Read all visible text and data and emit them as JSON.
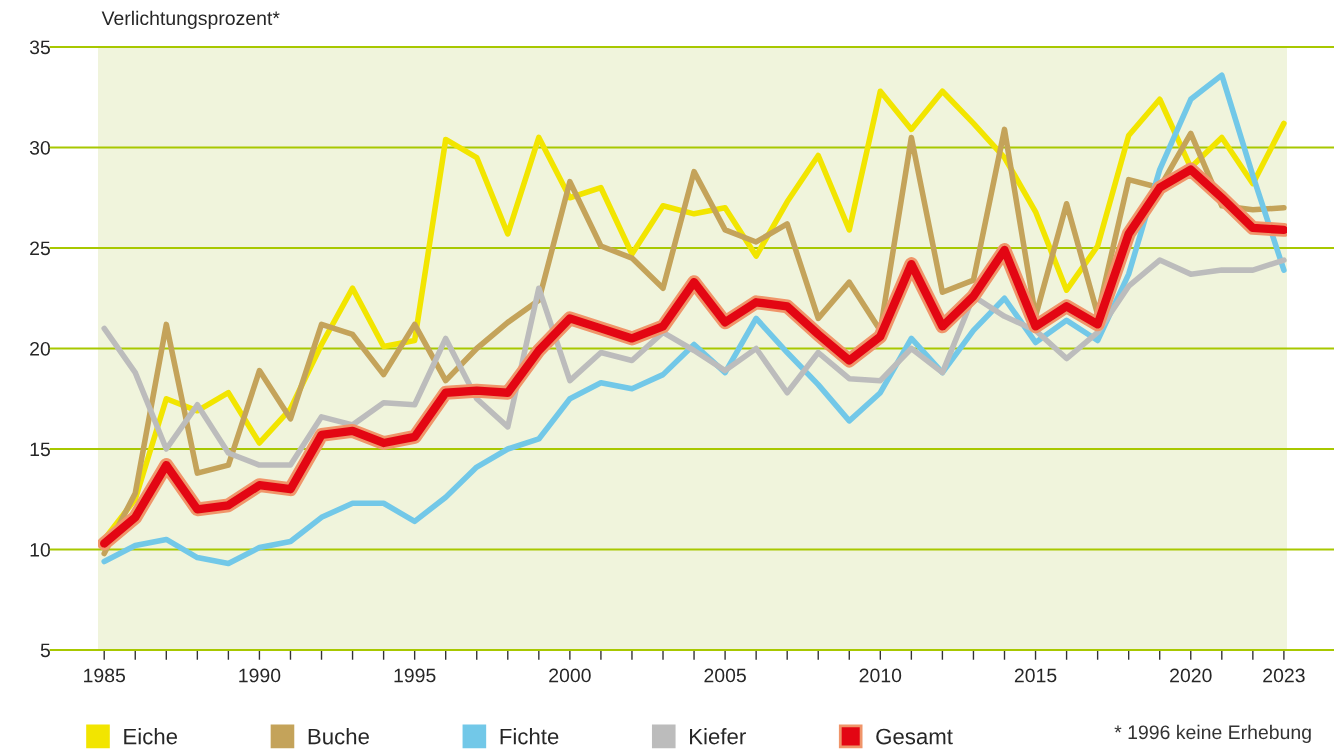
{
  "chart_data": {
    "type": "line",
    "ylabel": "Verlichtungsprozent*",
    "x": [
      1985,
      1986,
      1987,
      1988,
      1989,
      1990,
      1991,
      1992,
      1993,
      1994,
      1995,
      1996,
      1997,
      1998,
      1999,
      2000,
      2001,
      2002,
      2003,
      2004,
      2005,
      2006,
      2007,
      2008,
      2009,
      2010,
      2011,
      2012,
      2013,
      2014,
      2015,
      2016,
      2017,
      2018,
      2019,
      2020,
      2021,
      2022,
      2023
    ],
    "series": [
      {
        "name": "Eiche",
        "color": "#f2e500",
        "values": [
          10.5,
          12.5,
          17.5,
          16.9,
          17.8,
          15.3,
          17.0,
          20.2,
          23.0,
          20.1,
          20.4,
          30.4,
          29.5,
          25.7,
          30.5,
          27.5,
          28.0,
          24.7,
          27.1,
          26.7,
          27.0,
          24.6,
          27.3,
          29.6,
          25.9,
          32.8,
          30.9,
          32.8,
          31.2,
          29.5,
          26.8,
          22.9,
          25.1,
          30.6,
          32.4,
          29.0,
          30.5,
          28.2,
          31.2
        ]
      },
      {
        "name": "Buche",
        "color": "#c4a35a",
        "values": [
          9.8,
          12.8,
          21.2,
          13.8,
          14.2,
          18.9,
          16.5,
          21.2,
          20.7,
          18.7,
          21.2,
          18.4,
          20.0,
          21.3,
          22.4,
          28.3,
          25.1,
          24.5,
          23.0,
          28.8,
          25.9,
          25.3,
          26.2,
          21.5,
          23.3,
          20.9,
          30.5,
          22.8,
          23.4,
          30.9,
          21.6,
          27.2,
          21.7,
          28.4,
          28.0,
          30.7,
          27.1,
          26.9,
          27.0
        ]
      },
      {
        "name": "Fichte",
        "color": "#72c8e8",
        "values": [
          9.4,
          10.2,
          10.5,
          9.6,
          9.3,
          10.1,
          10.4,
          11.6,
          12.3,
          12.3,
          11.4,
          12.6,
          14.1,
          15.0,
          15.5,
          17.5,
          18.3,
          18.0,
          18.7,
          20.2,
          18.8,
          21.5,
          19.8,
          18.2,
          16.4,
          17.8,
          20.5,
          18.8,
          20.9,
          22.5,
          20.3,
          21.4,
          20.4,
          23.7,
          28.9,
          32.4,
          33.6,
          28.6,
          23.9
        ]
      },
      {
        "name": "Kiefer",
        "color": "#bcbcbc",
        "values": [
          21.0,
          18.8,
          15.0,
          17.2,
          14.8,
          14.2,
          14.2,
          16.6,
          16.2,
          17.3,
          17.2,
          20.5,
          17.5,
          16.1,
          23.0,
          18.4,
          19.8,
          19.4,
          20.8,
          19.9,
          18.9,
          20.0,
          17.8,
          19.8,
          18.5,
          18.4,
          20.0,
          18.8,
          22.6,
          21.6,
          20.9,
          19.5,
          20.8,
          23.1,
          24.4,
          23.7,
          23.9,
          23.9,
          24.4
        ]
      },
      {
        "name": "Gesamt",
        "color": "#e30613",
        "values": [
          10.3,
          11.6,
          14.2,
          12.0,
          12.2,
          13.2,
          13.0,
          15.7,
          15.9,
          15.3,
          15.6,
          17.8,
          17.9,
          17.8,
          19.9,
          21.5,
          21.0,
          20.5,
          21.1,
          23.3,
          21.3,
          22.3,
          22.1,
          20.7,
          19.4,
          20.6,
          24.2,
          21.1,
          22.6,
          24.9,
          21.1,
          22.1,
          21.2,
          25.7,
          28.0,
          28.9,
          27.5,
          26.0,
          25.9
        ]
      }
    ],
    "xlim": [
      1984.8,
      2023.1
    ],
    "xticks": [
      1985,
      {
        "value": 1986,
        "label": null
      },
      {
        "value": 1987,
        "label": null
      },
      {
        "value": 1988,
        "label": null
      },
      {
        "value": 1989,
        "label": null
      },
      1990,
      {
        "value": 1991,
        "label": null
      },
      {
        "value": 1992,
        "label": null
      },
      {
        "value": 1993,
        "label": null
      },
      {
        "value": 1994,
        "label": null
      },
      1995,
      {
        "value": 1996,
        "label": null
      },
      {
        "value": 1997,
        "label": null
      },
      {
        "value": 1998,
        "label": null
      },
      {
        "value": 1999,
        "label": null
      },
      2000,
      {
        "value": 2001,
        "label": null
      },
      {
        "value": 2002,
        "label": null
      },
      {
        "value": 2003,
        "label": null
      },
      {
        "value": 2004,
        "label": null
      },
      2005,
      {
        "value": 2006,
        "label": null
      },
      {
        "value": 2007,
        "label": null
      },
      {
        "value": 2008,
        "label": null
      },
      {
        "value": 2009,
        "label": null
      },
      2010,
      {
        "value": 2011,
        "label": null
      },
      {
        "value": 2012,
        "label": null
      },
      {
        "value": 2013,
        "label": null
      },
      {
        "value": 2014,
        "label": null
      },
      2015,
      {
        "value": 2016,
        "label": null
      },
      {
        "value": 2017,
        "label": null
      },
      {
        "value": 2018,
        "label": null
      },
      {
        "value": 2019,
        "label": null
      },
      2020,
      {
        "value": 2021,
        "label": null
      },
      {
        "value": 2022,
        "label": null
      },
      2023
    ],
    "ylim": [
      5,
      35
    ],
    "yticks": [
      5,
      10,
      15,
      20,
      25,
      30,
      35
    ],
    "grid": "y",
    "legend": "bottom",
    "marker": "none",
    "line_style": "solid",
    "annotations": [
      "* 1996 keine Erhebung"
    ]
  }
}
